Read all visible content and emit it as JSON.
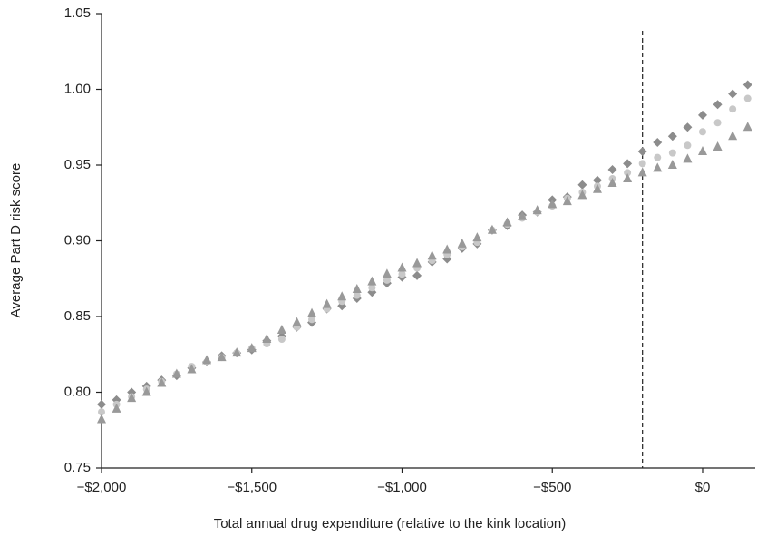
{
  "chart_data": {
    "type": "scatter",
    "xlabel": "Total annual drug expenditure (relative to the kink location)",
    "ylabel": "Average Part D risk score",
    "x": [
      -2000,
      -1950,
      -1900,
      -1850,
      -1800,
      -1750,
      -1700,
      -1650,
      -1600,
      -1550,
      -1500,
      -1450,
      -1400,
      -1350,
      -1300,
      -1250,
      -1200,
      -1150,
      -1100,
      -1050,
      -1000,
      -950,
      -900,
      -850,
      -800,
      -750,
      -700,
      -650,
      -600,
      -550,
      -500,
      -450,
      -400,
      -350,
      -300,
      -250,
      -200,
      -150,
      -100,
      -50,
      0,
      50,
      100,
      150
    ],
    "series": [
      {
        "marker": "diamond",
        "color": "#8c8c8c",
        "values": [
          0.792,
          0.795,
          0.8,
          0.804,
          0.808,
          0.811,
          0.816,
          0.82,
          0.824,
          0.826,
          0.828,
          0.834,
          0.837,
          0.843,
          0.846,
          0.855,
          0.857,
          0.862,
          0.866,
          0.872,
          0.876,
          0.877,
          0.886,
          0.888,
          0.895,
          0.898,
          0.907,
          0.91,
          0.917,
          0.919,
          0.927,
          0.929,
          0.937,
          0.94,
          0.947,
          0.951,
          0.959,
          0.965,
          0.969,
          0.975,
          0.983,
          0.99,
          0.997,
          1.003
        ]
      },
      {
        "marker": "circle",
        "color": "#c8c8c8",
        "values": [
          0.787,
          0.792,
          0.797,
          0.802,
          0.807,
          0.812,
          0.817,
          0.82,
          0.823,
          0.826,
          0.829,
          0.832,
          0.835,
          0.843,
          0.848,
          0.855,
          0.86,
          0.864,
          0.869,
          0.874,
          0.878,
          0.882,
          0.887,
          0.891,
          0.896,
          0.899,
          0.907,
          0.911,
          0.915,
          0.919,
          0.923,
          0.928,
          0.932,
          0.936,
          0.941,
          0.945,
          0.951,
          0.955,
          0.958,
          0.963,
          0.972,
          0.978,
          0.987,
          0.994
        ]
      },
      {
        "marker": "triangle",
        "color": "#999999",
        "values": [
          0.782,
          0.789,
          0.796,
          0.8,
          0.806,
          0.812,
          0.815,
          0.821,
          0.823,
          0.826,
          0.829,
          0.835,
          0.841,
          0.846,
          0.852,
          0.858,
          0.863,
          0.868,
          0.873,
          0.878,
          0.882,
          0.885,
          0.89,
          0.894,
          0.898,
          0.902,
          0.907,
          0.912,
          0.916,
          0.92,
          0.924,
          0.926,
          0.93,
          0.934,
          0.938,
          0.941,
          0.945,
          0.948,
          0.95,
          0.954,
          0.959,
          0.962,
          0.969,
          0.975
        ]
      }
    ],
    "vline": -200,
    "xlim": [
      -2000,
      175
    ],
    "xticks": [
      {
        "value": -2000,
        "label": "−$2,000"
      },
      {
        "value": -1500,
        "label": "−$1,500"
      },
      {
        "value": -1000,
        "label": "−$1,000"
      },
      {
        "value": -500,
        "label": "−$500"
      },
      {
        "value": 0,
        "label": "$0"
      }
    ],
    "ylim": [
      0.75,
      1.05
    ],
    "yticks": [
      0.75,
      {
        "value": 0.8,
        "label": "0.80"
      },
      0.85,
      {
        "value": 0.9,
        "label": "0.90"
      },
      0.95,
      {
        "value": 1,
        "label": "1.00"
      },
      1.05
    ]
  }
}
